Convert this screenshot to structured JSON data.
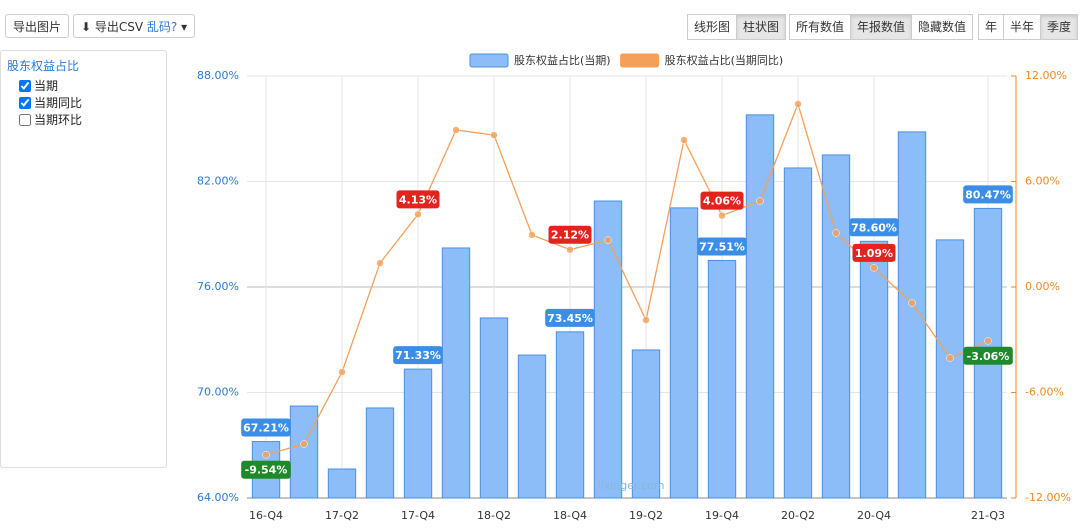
{
  "ui": {
    "toolbar": {
      "export_image": "导出图片",
      "export_csv": "导出CSV",
      "garbled": "乱码?",
      "chart_types": [
        "线形图",
        "柱状图"
      ],
      "value_modes": [
        "所有数值",
        "年报数值",
        "隐藏数值"
      ],
      "periods": [
        "年",
        "半年",
        "季度"
      ]
    },
    "sidebar": {
      "title": "股东权益占比",
      "options": [
        {
          "label": "当期",
          "checked": true
        },
        {
          "label": "当期同比",
          "checked": true
        },
        {
          "label": "当期环比",
          "checked": false
        }
      ]
    },
    "watermark": "lixinger.com"
  },
  "chart_data": {
    "type": "bar-line",
    "categories": [
      "16-Q4",
      null,
      "17-Q2",
      null,
      "17-Q4",
      null,
      "18-Q2",
      null,
      "18-Q4",
      null,
      "19-Q2",
      null,
      "19-Q4",
      null,
      "20-Q2",
      null,
      "20-Q4",
      null,
      null,
      "21-Q3"
    ],
    "series": [
      {
        "name": "股东权益占比(当期)",
        "type": "bar",
        "color": "#8cbdf8",
        "stroke": "#4a90e2",
        "label_color": "#3a8ee6",
        "values": [
          67.21,
          69.23,
          65.65,
          69.12,
          71.33,
          78.22,
          74.24,
          72.13,
          73.45,
          80.89,
          72.42,
          80.5,
          77.51,
          85.79,
          82.77,
          83.51,
          78.6,
          84.82,
          78.68,
          80.47
        ],
        "value_labels": [
          "67.21%",
          null,
          null,
          null,
          "71.33%",
          null,
          null,
          null,
          "73.45%",
          null,
          null,
          null,
          "77.51%",
          null,
          null,
          null,
          "78.60%",
          null,
          null,
          "80.47%"
        ]
      },
      {
        "name": "股东权益占比(当期同比)",
        "type": "line",
        "axis": "y2",
        "color": "#f5a05a",
        "positive_label_color": "#e5231e",
        "negative_label_color": "#1e8a2a",
        "values": [
          -9.54,
          -8.93,
          -4.84,
          1.36,
          4.13,
          8.93,
          8.64,
          2.96,
          2.12,
          2.67,
          -1.88,
          8.36,
          4.06,
          4.89,
          10.41,
          3.07,
          1.09,
          -0.91,
          -4.04,
          -3.06
        ],
        "value_labels": [
          "-9.54%",
          null,
          null,
          null,
          "4.13%",
          null,
          null,
          null,
          "2.12%",
          null,
          null,
          null,
          "4.06%",
          null,
          null,
          null,
          "1.09%",
          null,
          null,
          "-3.06%"
        ]
      }
    ],
    "ylim": [
      64,
      88
    ],
    "yticks": [
      {
        "value": 64,
        "label": "64.00%"
      },
      {
        "value": 70,
        "label": "70.00%"
      },
      {
        "value": 76,
        "label": "76.00%"
      },
      {
        "value": 82,
        "label": "82.00%"
      },
      {
        "value": 88,
        "label": "88.00%"
      }
    ],
    "y2lim": [
      -12,
      12
    ],
    "y2ticks": [
      {
        "value": -12,
        "label": "-12.00%"
      },
      {
        "value": -6,
        "label": "-6.00%"
      },
      {
        "value": 0,
        "label": "0.00%"
      },
      {
        "value": 6,
        "label": "6.00%"
      },
      {
        "value": 12,
        "label": "12.00%"
      }
    ],
    "grid": true,
    "legend": "top"
  }
}
